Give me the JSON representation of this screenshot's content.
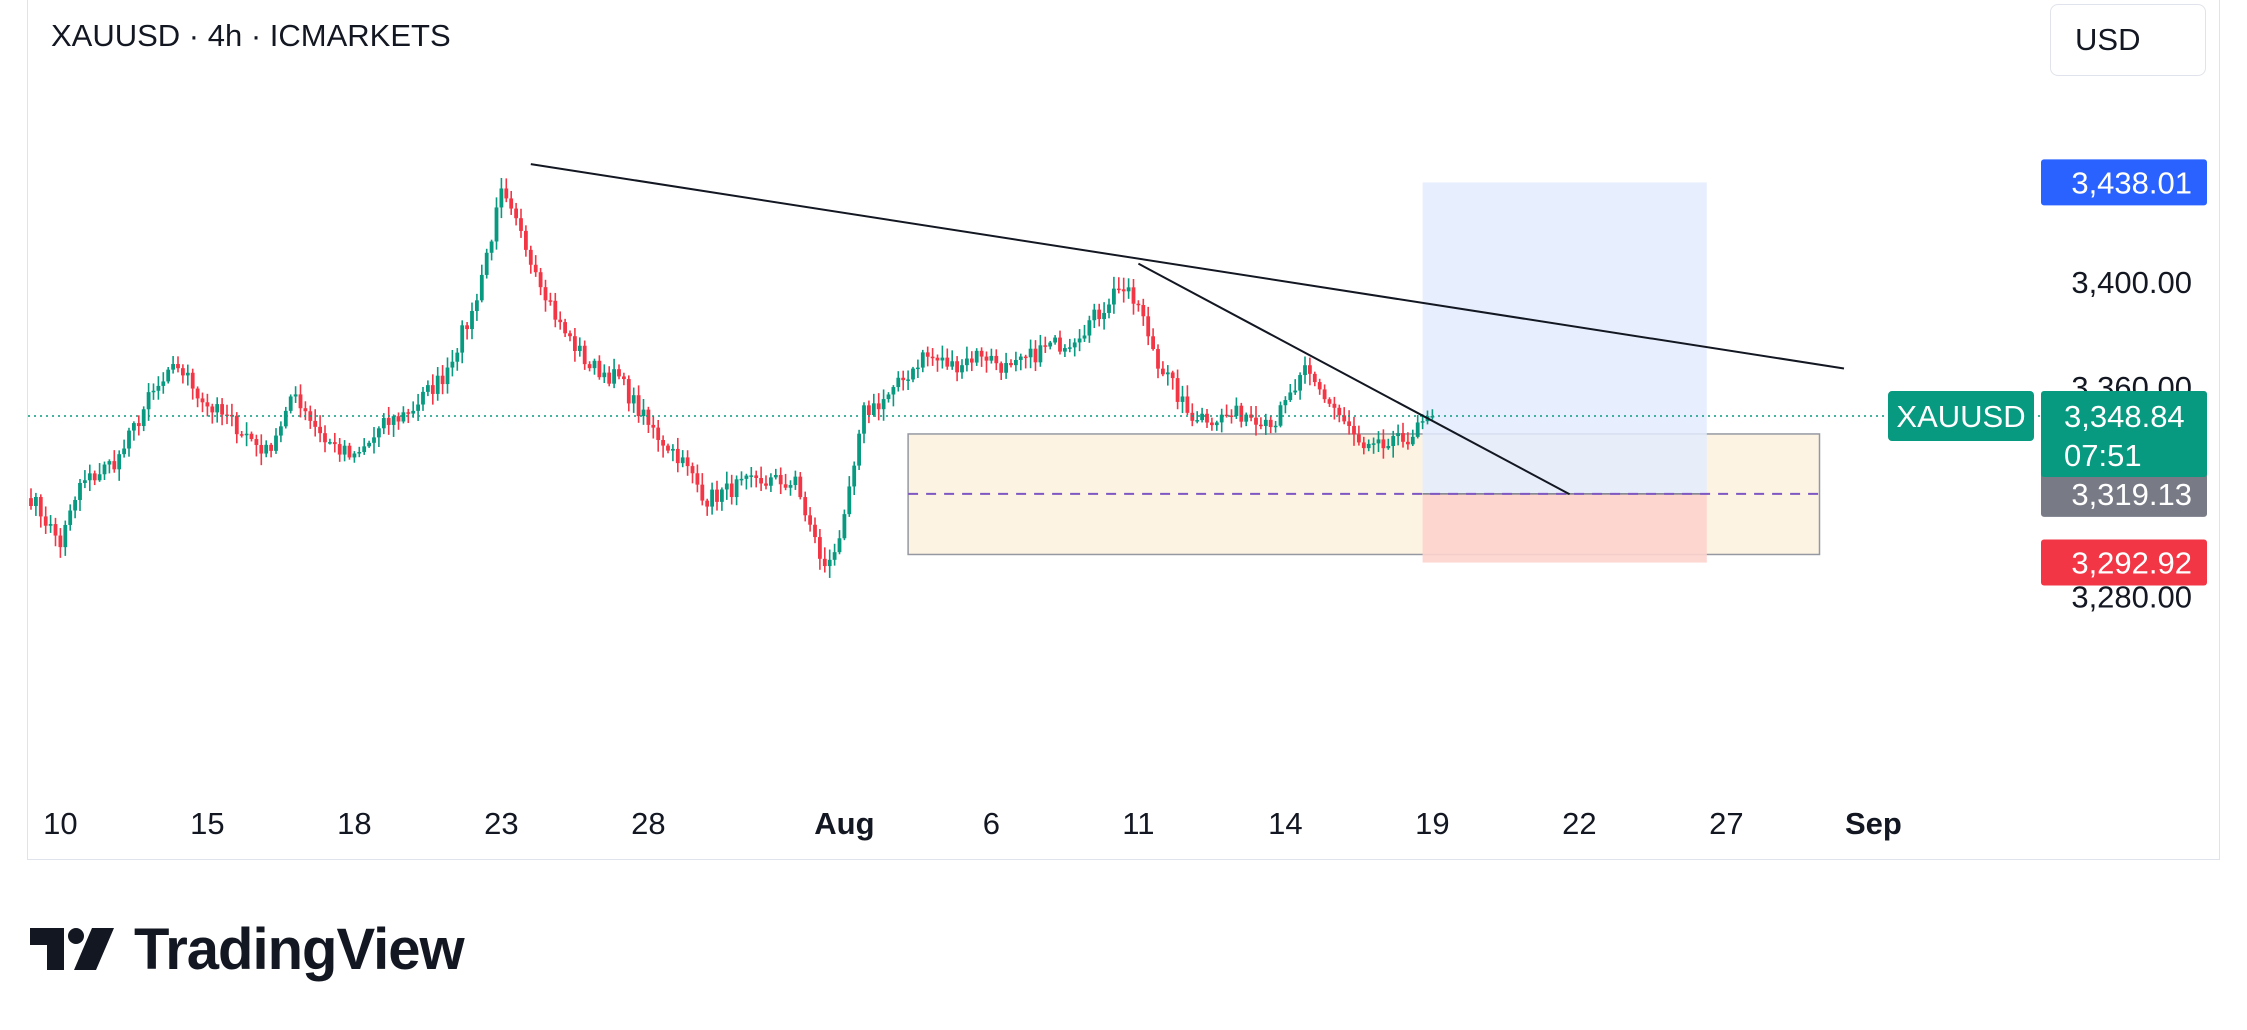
{
  "header": {
    "title": "XAUUSD · 4h · ICMARKETS",
    "currency_button": "USD"
  },
  "brand": {
    "name": "TradingView"
  },
  "colors": {
    "up": "#089981",
    "down": "#f23645",
    "current_price_bg": "#089981",
    "target_bg": "#2962ff",
    "entry_bg": "#787b86",
    "stop_bg": "#f23645",
    "zone_fill": "#fdf3e3",
    "profit_fill": "#e3ebfd",
    "loss_fill": "#fdd3cd"
  },
  "chart_data": {
    "type": "candlestick",
    "symbol": "XAUUSD",
    "interval": "4h",
    "exchange": "ICMARKETS",
    "ylim": [
      3260,
      3458
    ],
    "y_ticks": [
      {
        "label": "3,400.00",
        "value": 3400
      },
      {
        "label": "3,360.00",
        "value": 3360
      },
      {
        "label": "3,280.00",
        "value": 3280
      }
    ],
    "x_ticks": [
      {
        "label": "10",
        "index": 6,
        "month": false
      },
      {
        "label": "15",
        "index": 36,
        "month": false
      },
      {
        "label": "18",
        "index": 66,
        "month": false
      },
      {
        "label": "23",
        "index": 96,
        "month": false
      },
      {
        "label": "28",
        "index": 126,
        "month": false
      },
      {
        "label": "Aug",
        "index": 166,
        "month": true
      },
      {
        "label": "6",
        "index": 196,
        "month": false
      },
      {
        "label": "11",
        "index": 226,
        "month": false
      },
      {
        "label": "14",
        "index": 256,
        "month": false
      },
      {
        "label": "19",
        "index": 286,
        "month": false
      },
      {
        "label": "22",
        "index": 316,
        "month": false
      },
      {
        "label": "27",
        "index": 346,
        "month": false
      },
      {
        "label": "Sep",
        "index": 376,
        "month": true
      }
    ],
    "anchors": [
      [
        0,
        3318
      ],
      [
        6,
        3300
      ],
      [
        10,
        3322
      ],
      [
        18,
        3333
      ],
      [
        24,
        3355
      ],
      [
        30,
        3368
      ],
      [
        36,
        3353
      ],
      [
        42,
        3345
      ],
      [
        48,
        3335
      ],
      [
        54,
        3357
      ],
      [
        60,
        3340
      ],
      [
        66,
        3332
      ],
      [
        72,
        3345
      ],
      [
        78,
        3352
      ],
      [
        84,
        3364
      ],
      [
        90,
        3388
      ],
      [
        96,
        3433
      ],
      [
        102,
        3410
      ],
      [
        108,
        3383
      ],
      [
        114,
        3368
      ],
      [
        120,
        3363
      ],
      [
        126,
        3345
      ],
      [
        132,
        3334
      ],
      [
        138,
        3317
      ],
      [
        144,
        3322
      ],
      [
        150,
        3324
      ],
      [
        156,
        3323
      ],
      [
        162,
        3290
      ],
      [
        166,
        3308
      ],
      [
        170,
        3350
      ],
      [
        176,
        3358
      ],
      [
        182,
        3372
      ],
      [
        188,
        3368
      ],
      [
        194,
        3373
      ],
      [
        200,
        3366
      ],
      [
        206,
        3374
      ],
      [
        212,
        3378
      ],
      [
        218,
        3388
      ],
      [
        222,
        3399
      ],
      [
        226,
        3390
      ],
      [
        230,
        3370
      ],
      [
        236,
        3350
      ],
      [
        242,
        3348
      ],
      [
        248,
        3350
      ],
      [
        254,
        3347
      ],
      [
        260,
        3365
      ],
      [
        266,
        3352
      ],
      [
        272,
        3335
      ],
      [
        278,
        3338
      ],
      [
        282,
        3342
      ],
      [
        286,
        3348.84
      ]
    ],
    "last_price": {
      "label": "3,348.84",
      "value": 3348.84,
      "symbol": "XAUUSD",
      "countdown": "07:51"
    },
    "trendlines": [
      {
        "name": "upper-trendline",
        "from": [
          102,
          3445
        ],
        "to": [
          370,
          3367
        ]
      },
      {
        "name": "lower-trendline",
        "from": [
          226,
          3407
        ],
        "to": [
          314,
          3319
        ]
      }
    ],
    "demand_zone": {
      "from_index": 179,
      "to_index": 365,
      "top": 3342,
      "bottom": 3296,
      "mid": 3319.13
    },
    "position": {
      "from_index": 284,
      "to_index": 342,
      "target": 3438.01,
      "entry": 3319.13,
      "stop": 3292.92,
      "target_label": "3,438.01",
      "entry_label": "3,319.13",
      "stop_label": "3,292.92"
    }
  }
}
